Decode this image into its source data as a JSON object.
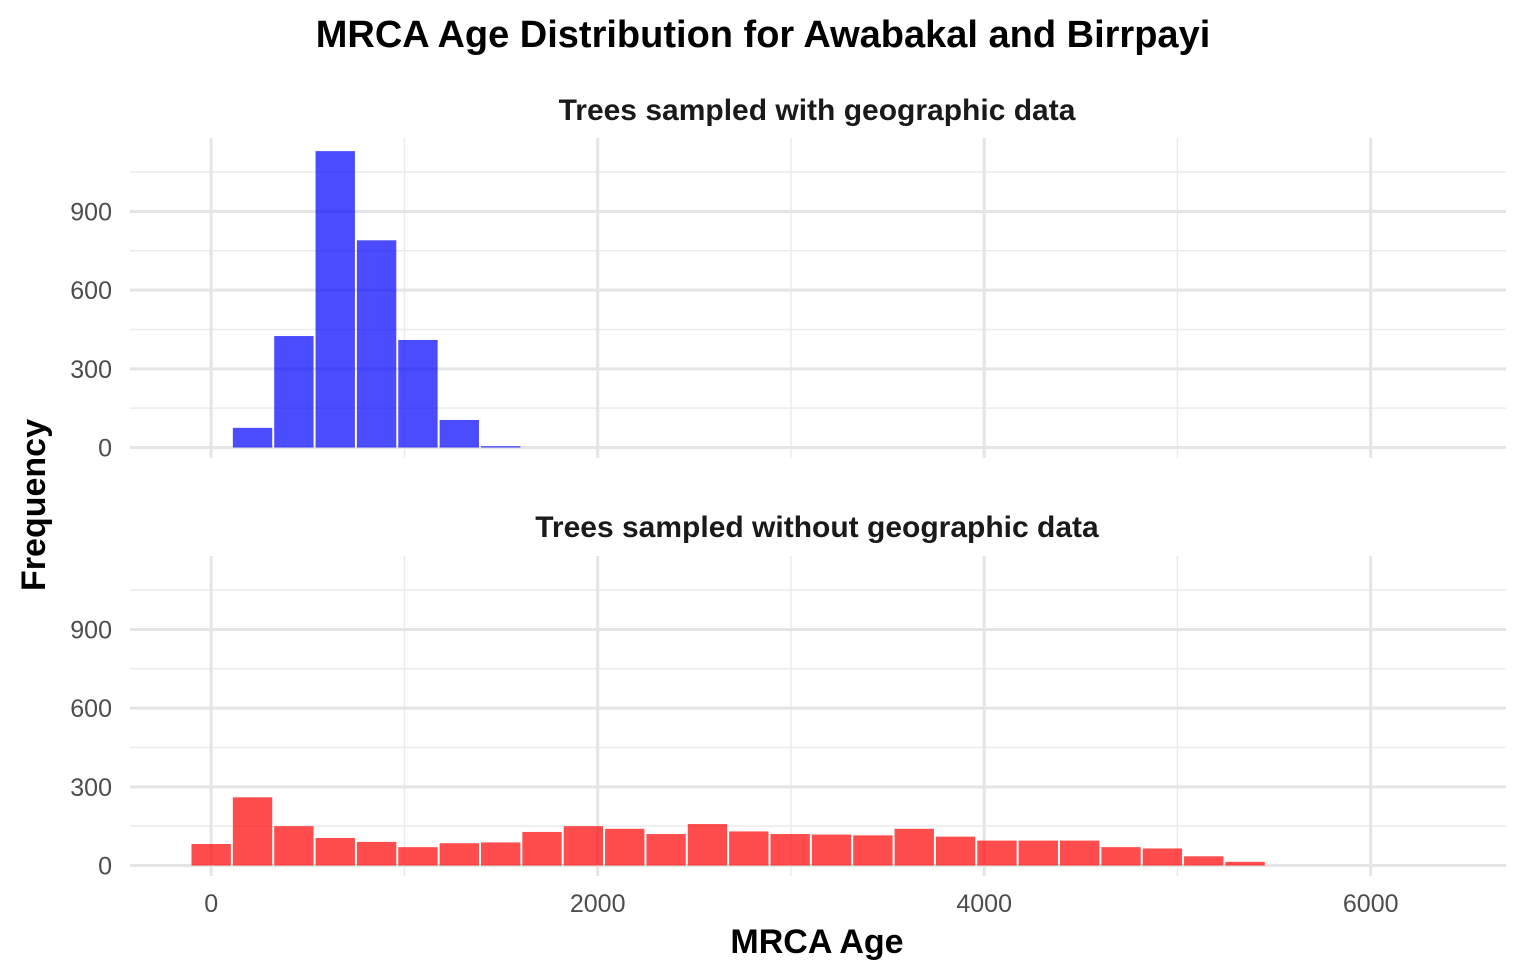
{
  "chart_data": {
    "type": "bar",
    "title": "MRCA Age Distribution for Awabakal and Birrpayi",
    "xlabel": "MRCA Age",
    "ylabel": "Frequency",
    "xlim": [
      -420,
      6700
    ],
    "ylim": [
      -40,
      1180
    ],
    "x_ticks": [
      0,
      2000,
      4000,
      6000
    ],
    "y_ticks": [
      0,
      300,
      600,
      900
    ],
    "grid": true,
    "bin_width": 214,
    "bin_starts": [
      -107,
      107,
      321,
      535,
      749,
      963,
      1177,
      1391,
      1605,
      1819,
      2033,
      2247,
      2461,
      2675,
      2889,
      3103,
      3317,
      3531,
      3745,
      3959,
      4173,
      4387,
      4601,
      4815,
      5029,
      5243,
      5457,
      5671,
      5885,
      6099,
      6313
    ],
    "panels": [
      {
        "strip_label": "Trees sampled with geographic data",
        "color": "#0000FF",
        "values": [
          0,
          75,
          425,
          1130,
          790,
          410,
          105,
          5,
          0,
          0,
          0,
          0,
          0,
          0,
          0,
          0,
          0,
          0,
          0,
          0,
          0,
          0,
          0,
          0,
          0,
          0,
          0,
          0,
          0,
          0,
          0
        ]
      },
      {
        "strip_label": "Trees sampled without geographic data",
        "color": "#FF0000",
        "values": [
          82,
          260,
          150,
          105,
          90,
          70,
          85,
          88,
          128,
          150,
          140,
          120,
          158,
          130,
          120,
          118,
          115,
          140,
          110,
          95,
          95,
          95,
          70,
          65,
          35,
          14,
          0,
          0,
          0,
          0,
          0
        ]
      }
    ]
  }
}
